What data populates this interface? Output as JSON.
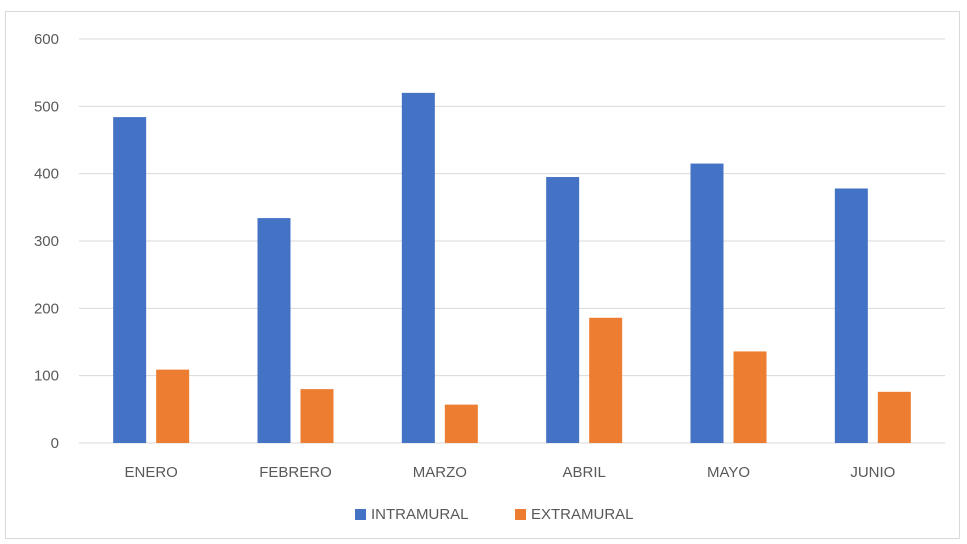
{
  "chart_data": {
    "type": "bar",
    "title": "",
    "xlabel": "",
    "ylabel": "",
    "ylim": [
      0,
      600
    ],
    "yticks": [
      0,
      100,
      200,
      300,
      400,
      500,
      600
    ],
    "grid": true,
    "legend_position": "bottom",
    "categories": [
      "ENERO",
      "FEBRERO",
      "MARZO",
      "ABRIL",
      "MAYO",
      "JUNIO"
    ],
    "series": [
      {
        "name": "INTRAMURAL",
        "color": "#4472C4",
        "values": [
          484,
          334,
          520,
          395,
          415,
          378
        ]
      },
      {
        "name": "EXTRAMURAL",
        "color": "#ED7D31",
        "values": [
          109,
          80,
          57,
          186,
          136,
          76
        ]
      }
    ]
  }
}
